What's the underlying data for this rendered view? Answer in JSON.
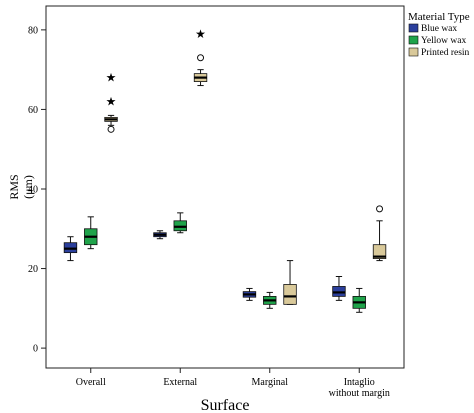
{
  "chart_data": {
    "type": "boxplot",
    "xlabel": "Surface",
    "ylabel": "RMS (μm)",
    "ylabel_parts": [
      "RMS",
      "(μm)"
    ],
    "ylim": [
      -5,
      86
    ],
    "yticks": [
      "0",
      "20",
      "40",
      "60",
      "80"
    ],
    "categories": [
      "Overall",
      "External",
      "Marginal",
      "Intaglio without margin"
    ],
    "category_label_lines": [
      [
        "Overall"
      ],
      [
        "External"
      ],
      [
        "Marginal"
      ],
      [
        "Intaglio",
        "without margin"
      ]
    ],
    "legend": {
      "title": "Material Type",
      "placement": "top-right",
      "entries": [
        "Blue wax",
        "Yellow wax",
        "Printed resin"
      ]
    },
    "series": [
      {
        "name": "Blue wax",
        "color": "#2b3f9c",
        "boxes": [
          {
            "category": "Overall",
            "min": 22,
            "q1": 24,
            "median": 25,
            "q3": 26.5,
            "max": 28,
            "outliers": []
          },
          {
            "category": "External",
            "min": 27.5,
            "q1": 28,
            "median": 28.5,
            "q3": 29,
            "max": 29.5,
            "outliers": []
          },
          {
            "category": "Marginal",
            "min": 12,
            "q1": 12.8,
            "median": 13.5,
            "q3": 14.2,
            "max": 15,
            "outliers": []
          },
          {
            "category": "Intaglio without margin",
            "min": 12,
            "q1": 13,
            "median": 14,
            "q3": 15.5,
            "max": 18,
            "outliers": []
          }
        ]
      },
      {
        "name": "Yellow wax",
        "color": "#1fa34a",
        "boxes": [
          {
            "category": "Overall",
            "min": 25,
            "q1": 26,
            "median": 28,
            "q3": 30,
            "max": 33,
            "outliers": []
          },
          {
            "category": "External",
            "min": 29,
            "q1": 29.5,
            "median": 30.5,
            "q3": 32,
            "max": 34,
            "outliers": []
          },
          {
            "category": "Marginal",
            "min": 10,
            "q1": 11,
            "median": 12,
            "q3": 13,
            "max": 14,
            "outliers": []
          },
          {
            "category": "Intaglio without margin",
            "min": 9,
            "q1": 10,
            "median": 11.5,
            "q3": 13,
            "max": 15,
            "outliers": []
          }
        ]
      },
      {
        "name": "Printed resin",
        "color": "#d9c99a",
        "boxes": [
          {
            "category": "Overall",
            "min": 56,
            "q1": 57,
            "median": 57.5,
            "q3": 58,
            "max": 58.5,
            "outliers": [
              {
                "y": 55,
                "kind": "circle"
              },
              {
                "y": 62,
                "kind": "star"
              },
              {
                "y": 68,
                "kind": "star"
              }
            ]
          },
          {
            "category": "External",
            "min": 66,
            "q1": 67,
            "median": 68,
            "q3": 69,
            "max": 70,
            "outliers": [
              {
                "y": 73,
                "kind": "circle"
              },
              {
                "y": 79,
                "kind": "star"
              }
            ]
          },
          {
            "category": "Marginal",
            "min": 11,
            "q1": 11,
            "median": 13,
            "q3": 16,
            "max": 22,
            "outliers": []
          },
          {
            "category": "Intaglio without margin",
            "min": 22,
            "q1": 22.5,
            "median": 23,
            "q3": 26,
            "max": 32,
            "outliers": [
              {
                "y": 35,
                "kind": "circle"
              }
            ]
          }
        ]
      }
    ]
  }
}
